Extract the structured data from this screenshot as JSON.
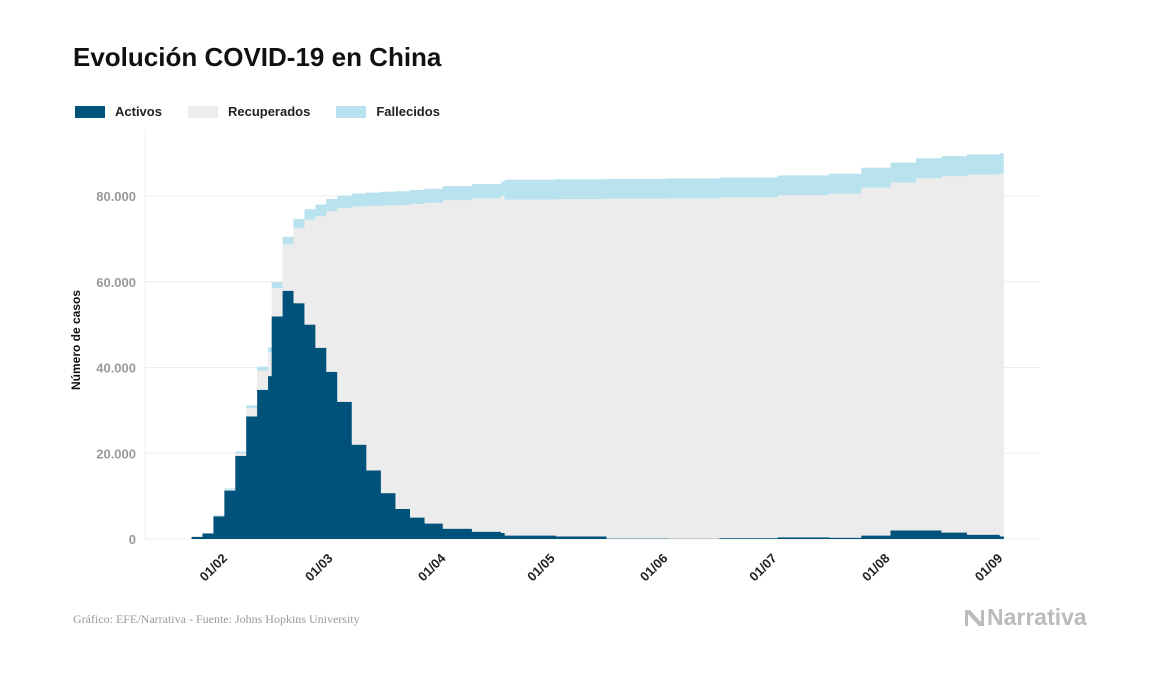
{
  "title": "Evolución COVID-19 en China",
  "source": "Gráfico: EFE/Narrativa - Fuente: Johns Hopkins University",
  "logo": "Narrativa",
  "chart_data": {
    "type": "area",
    "stacked": true,
    "ylabel": "Número de casos",
    "ylim": [
      0,
      94000
    ],
    "yticks": [
      0,
      20000,
      40000,
      60000,
      80000
    ],
    "ytick_labels": [
      "0",
      "20.000",
      "40.000",
      "60.000",
      "80.000"
    ],
    "xticks": [
      "2020-02-01",
      "2020-03-01",
      "2020-04-01",
      "2020-05-01",
      "2020-06-01",
      "2020-07-01",
      "2020-08-01",
      "2020-09-01"
    ],
    "xtick_labels": [
      "01/02",
      "01/03",
      "01/04",
      "01/05",
      "01/06",
      "01/07",
      "01/08",
      "01/09"
    ],
    "grid": true,
    "legend_position": "top-left",
    "x": [
      "2020-01-22",
      "2020-01-25",
      "2020-01-28",
      "2020-01-31",
      "2020-02-03",
      "2020-02-06",
      "2020-02-09",
      "2020-02-12",
      "2020-02-13",
      "2020-02-16",
      "2020-02-19",
      "2020-02-22",
      "2020-02-25",
      "2020-02-28",
      "2020-03-02",
      "2020-03-06",
      "2020-03-10",
      "2020-03-14",
      "2020-03-18",
      "2020-03-22",
      "2020-03-26",
      "2020-03-31",
      "2020-04-08",
      "2020-04-16",
      "2020-04-17",
      "2020-05-01",
      "2020-05-15",
      "2020-06-01",
      "2020-06-15",
      "2020-07-01",
      "2020-07-15",
      "2020-07-24",
      "2020-08-01",
      "2020-08-08",
      "2020-08-15",
      "2020-08-22",
      "2020-08-31"
    ],
    "series": [
      {
        "name": "Activos",
        "color": "#00527a",
        "values": [
          500,
          1300,
          5300,
          11300,
          19400,
          28600,
          34800,
          38000,
          51900,
          57900,
          55000,
          50000,
          44600,
          39000,
          32000,
          22000,
          16000,
          10700,
          7000,
          5000,
          3600,
          2400,
          1700,
          1400,
          800,
          600,
          100,
          70,
          200,
          400,
          300,
          800,
          2000,
          2000,
          1500,
          1000,
          600
        ]
      },
      {
        "name": "Recuperados",
        "color": "#ececec",
        "values": [
          33,
          58,
          69,
          241,
          575,
          1964,
          4492,
          5583,
          6631,
          10830,
          17482,
          24458,
          30685,
          37463,
          45185,
          55558,
          61664,
          67111,
          70870,
          73139,
          74807,
          76591,
          77765,
          78654,
          78364,
          78663,
          79263,
          79392,
          79462,
          79759,
          80256,
          81152,
          81132,
          82112,
          83097,
          83990,
          84688
        ]
      },
      {
        "name": "Fallecidos",
        "color": "#b8e2ee",
        "values": [
          17,
          42,
          131,
          259,
          425,
          636,
          908,
          1117,
          1369,
          1770,
          2118,
          2442,
          2715,
          2837,
          2915,
          3042,
          3136,
          3189,
          3230,
          3261,
          3293,
          3309,
          3335,
          3346,
          4636,
          4637,
          4637,
          4638,
          4638,
          4641,
          4644,
          4648,
          4668,
          4688,
          4703,
          4710,
          4712
        ]
      }
    ]
  }
}
